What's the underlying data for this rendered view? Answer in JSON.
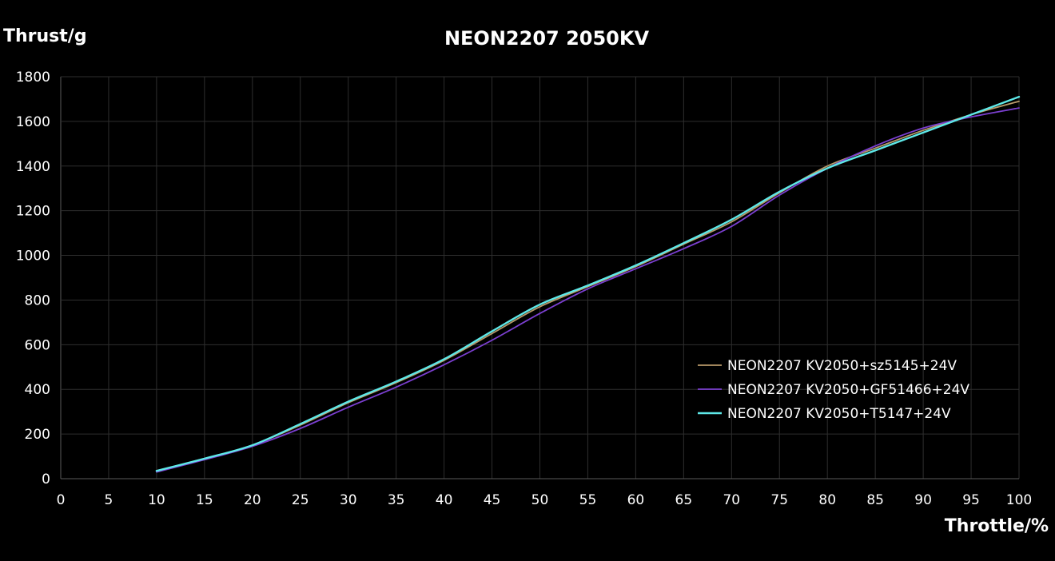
{
  "chart_data": {
    "type": "line",
    "title": "NEON2207 2050KV",
    "xlabel": "Throttle/%",
    "ylabel": "Thrust/g",
    "xlim": [
      0,
      100
    ],
    "ylim": [
      0,
      1800
    ],
    "xticks": [
      0,
      5,
      10,
      15,
      20,
      25,
      30,
      35,
      40,
      45,
      50,
      55,
      60,
      65,
      70,
      75,
      80,
      85,
      90,
      95,
      100
    ],
    "yticks": [
      0,
      200,
      400,
      600,
      800,
      1000,
      1200,
      1400,
      1600,
      1800
    ],
    "grid": true,
    "legend_position": "bottom-right",
    "x": [
      10,
      15,
      20,
      25,
      30,
      35,
      40,
      45,
      50,
      55,
      60,
      65,
      70,
      75,
      80,
      85,
      90,
      95,
      100
    ],
    "series": [
      {
        "name": "NEON2207 KV2050+sz5145+24V",
        "color": "#b89a6a",
        "values": [
          35,
          90,
          150,
          240,
          340,
          430,
          530,
          650,
          770,
          860,
          950,
          1050,
          1150,
          1280,
          1400,
          1480,
          1560,
          1630,
          1690
        ]
      },
      {
        "name": "NEON2207 KV2050+GF51466+24V",
        "color": "#7b3fd0",
        "values": [
          30,
          85,
          145,
          225,
          320,
          410,
          510,
          620,
          740,
          850,
          940,
          1030,
          1130,
          1270,
          1390,
          1490,
          1570,
          1620,
          1660
        ]
      },
      {
        "name": "NEON2207 KV2050+T5147+24V",
        "color": "#5ee8e8",
        "values": [
          35,
          90,
          150,
          245,
          345,
          435,
          535,
          660,
          780,
          865,
          955,
          1055,
          1160,
          1285,
          1390,
          1470,
          1550,
          1630,
          1710
        ]
      }
    ]
  }
}
